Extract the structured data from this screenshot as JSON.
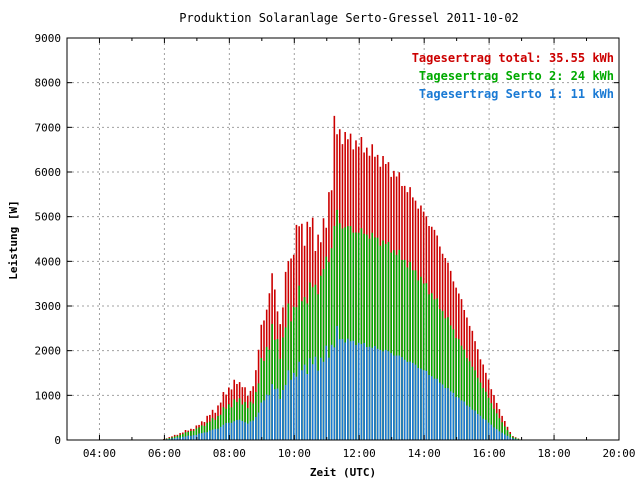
{
  "chart_data": {
    "type": "bar",
    "title": "Produktion Solaranlage Serto-Gressel 2011-10-02",
    "xlabel": "Zeit (UTC)",
    "ylabel": "Leistung [W]",
    "xlim": [
      3.0,
      20.0
    ],
    "ylim": [
      0,
      9000
    ],
    "x_ticks": [
      4,
      6,
      8,
      10,
      12,
      14,
      16,
      18,
      20
    ],
    "x_tick_labels": [
      "04:00",
      "06:00",
      "08:00",
      "10:00",
      "12:00",
      "14:00",
      "16:00",
      "18:00",
      "20:00"
    ],
    "y_ticks": [
      0,
      1000,
      2000,
      3000,
      4000,
      5000,
      6000,
      7000,
      8000,
      9000
    ],
    "y_tick_labels": [
      "0",
      "1000",
      "2000",
      "3000",
      "4000",
      "5000",
      "6000",
      "7000",
      "8000",
      "9000"
    ],
    "grid": true,
    "legend_position": "top-right",
    "x_unit": "hour of day (UTC)",
    "profile_hours": [
      5.9,
      6.3,
      7.0,
      7.6,
      8.0,
      8.4,
      8.6,
      8.8,
      9.0,
      9.3,
      9.6,
      9.8,
      10.2,
      10.5,
      10.9,
      11.3,
      11.5,
      11.8,
      12.3,
      12.8,
      13.3,
      13.8,
      14.3,
      14.8,
      15.3,
      15.8,
      16.3,
      16.7,
      17.0
    ],
    "series": [
      {
        "name": "Tagesertrag total: 35.55 kWh",
        "color": "#cc0000",
        "values": [
          0,
          100,
          300,
          700,
          1200,
          1300,
          900,
          1500,
          2500,
          3600,
          2600,
          4000,
          4800,
          4700,
          4500,
          7000,
          6800,
          6700,
          6500,
          6200,
          5800,
          5300,
          4700,
          3800,
          2800,
          1700,
          700,
          100,
          0
        ]
      },
      {
        "name": "Tagesertrag Serto 2: 24 kWh",
        "color": "#00aa00",
        "values": [
          0,
          70,
          250,
          500,
          800,
          900,
          700,
          1000,
          1700,
          2400,
          2000,
          2800,
          3200,
          3300,
          3700,
          4900,
          4800,
          4700,
          4600,
          4400,
          4100,
          3700,
          3200,
          2600,
          1900,
          1200,
          500,
          80,
          0
        ]
      },
      {
        "name": "Tagesertrag Serto 1: 11 kWh",
        "color": "#1a7ad4",
        "values": [
          0,
          40,
          120,
          250,
          400,
          450,
          350,
          500,
          800,
          1200,
          1000,
          1400,
          1600,
          1700,
          1800,
          2300,
          2250,
          2200,
          2100,
          2000,
          1850,
          1650,
          1400,
          1100,
          800,
          500,
          200,
          40,
          0
        ]
      }
    ]
  }
}
